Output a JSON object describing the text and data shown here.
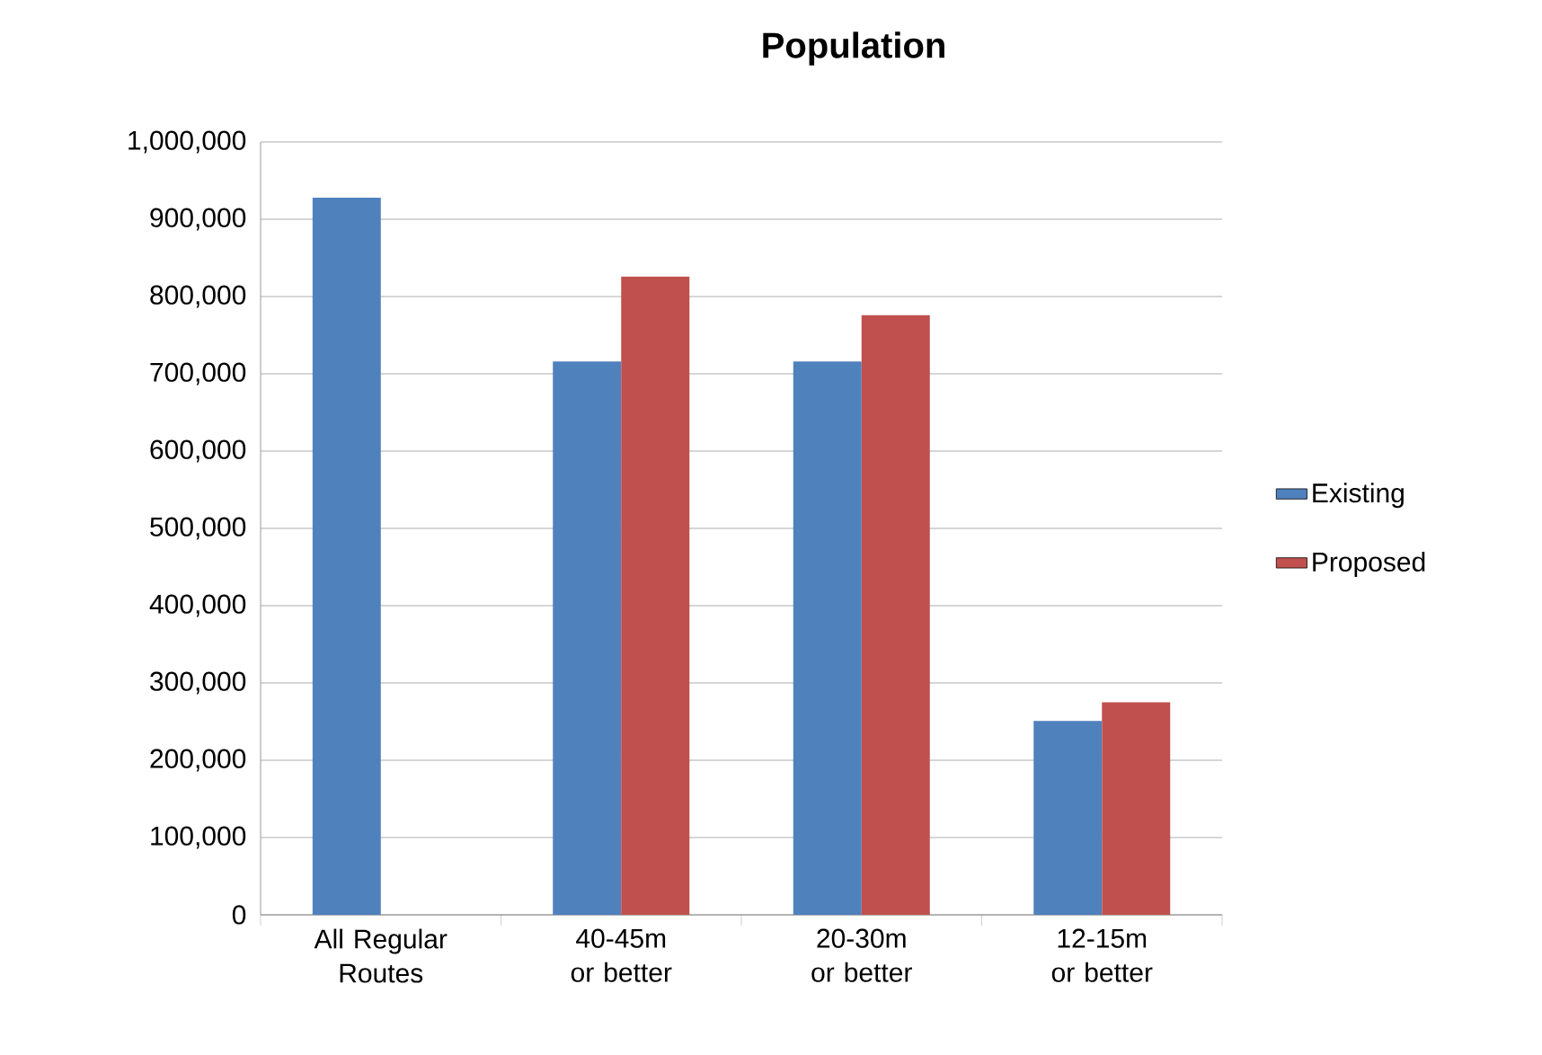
{
  "chart_data": {
    "type": "bar",
    "title": "Population",
    "categories": [
      "All Regular Routes",
      "40-45m or better",
      "20-30m or better",
      "12-15m or better"
    ],
    "series": [
      {
        "name": "Existing",
        "color": "#4f81bd",
        "values": [
          928000,
          716000,
          716000,
          251000
        ]
      },
      {
        "name": "Proposed",
        "color": "#c0504d",
        "values": [
          null,
          826000,
          776000,
          275000
        ]
      }
    ],
    "ylim": [
      0,
      1000000
    ],
    "yticks": [
      0,
      {
        "value": 100000,
        "label": "100,000"
      },
      {
        "value": 200000,
        "label": "200,000"
      },
      {
        "value": 300000,
        "label": "300,000"
      },
      {
        "value": 400000,
        "label": "400,000"
      },
      {
        "value": 500000,
        "label": "500,000"
      },
      {
        "value": 600000,
        "label": "600,000"
      },
      {
        "value": 700000,
        "label": "700,000"
      },
      {
        "value": 800000,
        "label": "800,000"
      },
      {
        "value": 900000,
        "label": "900,000"
      },
      {
        "value": 1000000,
        "label": "1,000,000"
      }
    ],
    "grid": "y",
    "legend": "right"
  }
}
